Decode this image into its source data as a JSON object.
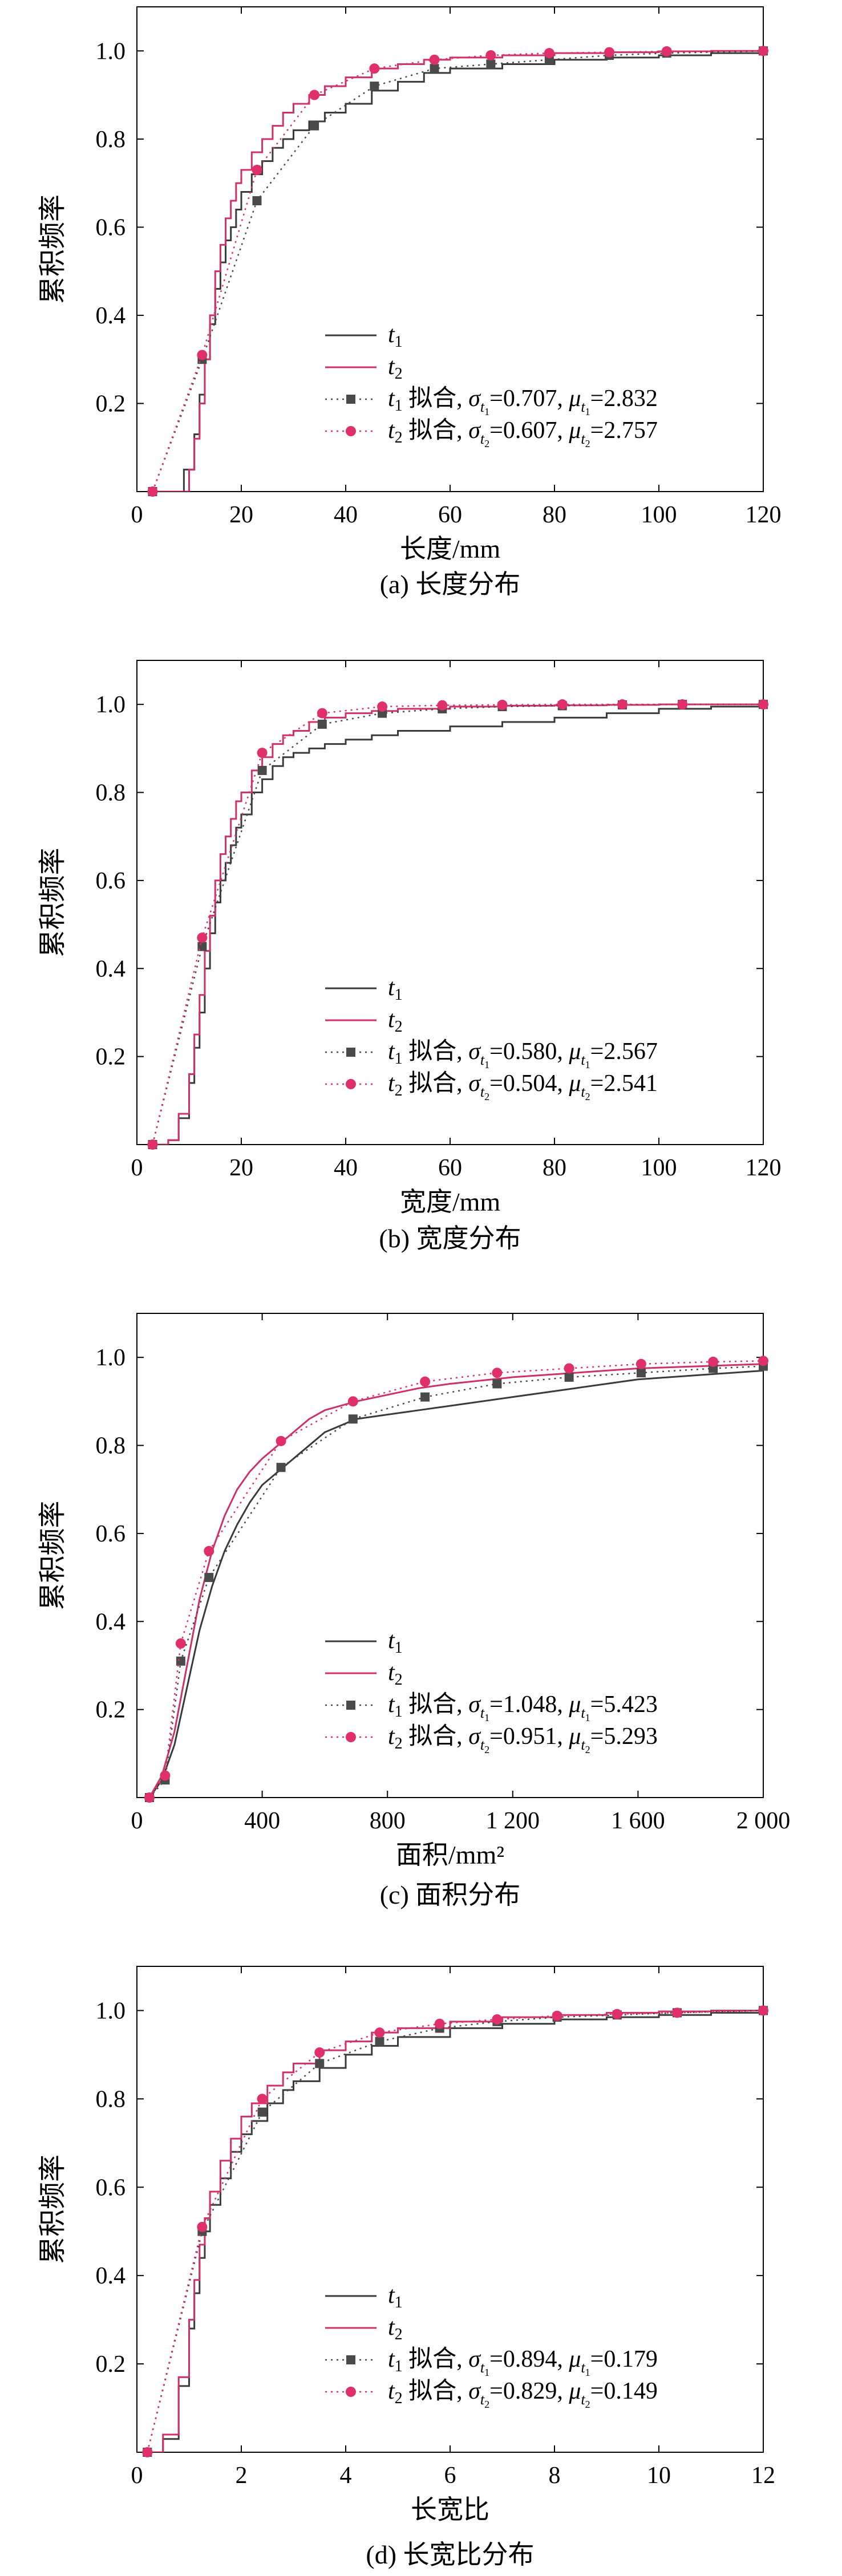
{
  "colors": {
    "t1": "#3a3a3a",
    "t2": "#d0306a",
    "fit1": "#4a4a4a",
    "fit2": "#e0306a",
    "axis": "#000000"
  },
  "chart_data": [
    {
      "type": "line",
      "caption": "(a) 长度分布",
      "xlabel": "长度/mm",
      "ylabel": "累积频率",
      "xlim": [
        0,
        120
      ],
      "ylim": [
        0,
        1.1
      ],
      "xticks": [
        0,
        20,
        40,
        60,
        80,
        100,
        120
      ],
      "xticklabels": [
        "0",
        "20",
        "40",
        "60",
        "80",
        "100",
        "120"
      ],
      "yticks": [
        0.2,
        0.4,
        0.6,
        0.8,
        1.0
      ],
      "yticklabels": [
        "0.2",
        "0.4",
        "0.6",
        "0.8",
        "1.0"
      ],
      "grid": false,
      "legend_position": "bottom-right",
      "legend": [
        {
          "base": "t",
          "sub": "1",
          "text": ""
        },
        {
          "base": "t",
          "sub": "2",
          "text": ""
        },
        {
          "base": "t",
          "sub": "1",
          "text": " 拟合, σ",
          "sub2": "t1",
          "mid": "=0.707, μ",
          "sub3": "t1",
          "end": "=2.832"
        },
        {
          "base": "t",
          "sub": "2",
          "text": " 拟合, σ",
          "sub2": "t2",
          "mid": "=0.607, μ",
          "sub3": "t2",
          "end": "=2.757"
        }
      ],
      "series": [
        {
          "key": "t1",
          "style": "step",
          "x": [
            3,
            7,
            9,
            11,
            12,
            13,
            14,
            15,
            16,
            17,
            18,
            19,
            20,
            22,
            24,
            26,
            28,
            30,
            33,
            36,
            40,
            45,
            50,
            55,
            60,
            70,
            80,
            90,
            100,
            110,
            120
          ],
          "y": [
            0,
            0,
            0.05,
            0.13,
            0.22,
            0.3,
            0.38,
            0.46,
            0.52,
            0.57,
            0.6,
            0.64,
            0.68,
            0.72,
            0.75,
            0.78,
            0.8,
            0.82,
            0.84,
            0.86,
            0.88,
            0.91,
            0.93,
            0.95,
            0.96,
            0.97,
            0.98,
            0.985,
            0.99,
            0.995,
            1.0
          ]
        },
        {
          "key": "t2",
          "style": "step",
          "x": [
            3,
            9,
            10,
            11,
            12,
            13,
            14,
            15,
            16,
            17,
            18,
            19,
            20,
            22,
            24,
            26,
            28,
            30,
            33,
            36,
            40,
            45,
            50,
            55,
            60,
            70,
            80,
            90,
            100,
            110,
            120
          ],
          "y": [
            0,
            0,
            0.05,
            0.12,
            0.2,
            0.3,
            0.4,
            0.5,
            0.56,
            0.62,
            0.66,
            0.7,
            0.73,
            0.77,
            0.8,
            0.83,
            0.86,
            0.88,
            0.9,
            0.92,
            0.94,
            0.96,
            0.97,
            0.98,
            0.985,
            0.99,
            0.995,
            0.997,
            0.999,
            1.0,
            1.0
          ]
        },
        {
          "key": "fit1",
          "style": "dotted",
          "x": [
            3,
            12.5,
            23,
            34,
            45.5,
            57,
            67.8,
            79,
            90.5,
            101.5,
            120
          ],
          "y": [
            0,
            0.3,
            0.66,
            0.83,
            0.92,
            0.96,
            0.97,
            0.98,
            0.99,
            0.995,
            1.0
          ]
        },
        {
          "key": "fit2",
          "style": "dotted",
          "x": [
            3,
            12.5,
            23,
            34,
            45.5,
            57,
            67.8,
            79,
            90.5,
            101.5,
            120
          ],
          "y": [
            0,
            0.31,
            0.73,
            0.9,
            0.96,
            0.98,
            0.99,
            0.995,
            0.997,
            0.999,
            1.0
          ]
        }
      ]
    },
    {
      "type": "line",
      "caption": "(b) 宽度分布",
      "xlabel": "宽度/mm",
      "ylabel": "累积频率",
      "xlim": [
        0,
        120
      ],
      "ylim": [
        0,
        1.1
      ],
      "xticks": [
        0,
        20,
        40,
        60,
        80,
        100,
        120
      ],
      "xticklabels": [
        "0",
        "20",
        "40",
        "60",
        "80",
        "100",
        "120"
      ],
      "yticks": [
        0.2,
        0.4,
        0.6,
        0.8,
        1.0
      ],
      "yticklabels": [
        "0.2",
        "0.4",
        "0.6",
        "0.8",
        "1.0"
      ],
      "grid": false,
      "legend_position": "bottom-right",
      "legend": [
        {
          "base": "t",
          "sub": "1",
          "text": ""
        },
        {
          "base": "t",
          "sub": "2",
          "text": ""
        },
        {
          "base": "t",
          "sub": "1",
          "text": " 拟合, σ",
          "sub2": "t1",
          "mid": "=0.580, μ",
          "sub3": "t1",
          "end": "=2.567"
        },
        {
          "base": "t",
          "sub": "2",
          "text": " 拟合, σ",
          "sub2": "t2",
          "mid": "=0.504, μ",
          "sub3": "t2",
          "end": "=2.541"
        }
      ],
      "series": [
        {
          "key": "t1",
          "style": "step",
          "x": [
            3,
            6,
            8,
            10,
            11,
            12,
            13,
            14,
            15,
            16,
            17,
            18,
            19,
            20,
            22,
            24,
            26,
            28,
            30,
            33,
            36,
            40,
            45,
            50,
            60,
            70,
            80,
            90,
            100,
            110,
            120
          ],
          "y": [
            0,
            0.01,
            0.06,
            0.14,
            0.22,
            0.3,
            0.4,
            0.48,
            0.55,
            0.6,
            0.64,
            0.68,
            0.72,
            0.75,
            0.8,
            0.83,
            0.86,
            0.88,
            0.89,
            0.9,
            0.91,
            0.92,
            0.93,
            0.94,
            0.95,
            0.96,
            0.97,
            0.98,
            0.99,
            0.995,
            1.0
          ]
        },
        {
          "key": "t2",
          "style": "step",
          "x": [
            3,
            6,
            8,
            10,
            11,
            12,
            13,
            14,
            15,
            16,
            17,
            18,
            19,
            20,
            22,
            24,
            26,
            28,
            30,
            33,
            36,
            40,
            45,
            50,
            60,
            70,
            80,
            90,
            100,
            110,
            120
          ],
          "y": [
            0,
            0.01,
            0.07,
            0.16,
            0.25,
            0.34,
            0.44,
            0.52,
            0.6,
            0.66,
            0.7,
            0.74,
            0.78,
            0.8,
            0.85,
            0.88,
            0.91,
            0.93,
            0.94,
            0.96,
            0.97,
            0.98,
            0.985,
            0.99,
            0.995,
            0.997,
            0.998,
            0.999,
            1.0,
            1.0,
            1.0
          ]
        },
        {
          "key": "fit1",
          "style": "dotted",
          "x": [
            3,
            12.5,
            24,
            35.5,
            47,
            58.5,
            70,
            81.5,
            93,
            104.5,
            120
          ],
          "y": [
            0,
            0.45,
            0.85,
            0.955,
            0.98,
            0.99,
            0.995,
            0.997,
            0.999,
            1.0,
            1.0
          ]
        },
        {
          "key": "fit2",
          "style": "dotted",
          "x": [
            3,
            12.5,
            24,
            35.5,
            47,
            58.5,
            70,
            81.5,
            93,
            104.5,
            120
          ],
          "y": [
            0,
            0.47,
            0.89,
            0.98,
            0.995,
            0.998,
            0.999,
            1.0,
            1.0,
            1.0,
            1.0
          ]
        }
      ]
    },
    {
      "type": "line",
      "caption": "(c) 面积分布",
      "xlabel": "面积/mm²",
      "ylabel": "累积频率",
      "xlim": [
        0,
        2000
      ],
      "ylim": [
        0,
        1.1
      ],
      "xticks": [
        0,
        400,
        800,
        1200,
        1600,
        2000
      ],
      "xticklabels": [
        "0",
        "400",
        "800",
        "1 200",
        "1 600",
        "2 000"
      ],
      "yticks": [
        0.2,
        0.4,
        0.6,
        0.8,
        1.0
      ],
      "yticklabels": [
        "0.2",
        "0.4",
        "0.6",
        "0.8",
        "1.0"
      ],
      "grid": false,
      "legend_position": "bottom-right",
      "legend": [
        {
          "base": "t",
          "sub": "1",
          "text": ""
        },
        {
          "base": "t",
          "sub": "2",
          "text": ""
        },
        {
          "base": "t",
          "sub": "1",
          "text": " 拟合, σ",
          "sub2": "t1",
          "mid": "=1.048, μ",
          "sub3": "t1",
          "end": "=5.423"
        },
        {
          "base": "t",
          "sub": "2",
          "text": " 拟合, σ",
          "sub2": "t2",
          "mid": "=0.951, μ",
          "sub3": "t2",
          "end": "=5.293"
        }
      ],
      "series": [
        {
          "key": "t1",
          "style": "line",
          "x": [
            40,
            80,
            120,
            160,
            200,
            240,
            280,
            320,
            360,
            400,
            450,
            500,
            550,
            600,
            700,
            800,
            900,
            1000,
            1200,
            1400,
            1600,
            1800,
            2000
          ],
          "y": [
            0,
            0.04,
            0.12,
            0.25,
            0.38,
            0.48,
            0.56,
            0.62,
            0.67,
            0.71,
            0.74,
            0.77,
            0.8,
            0.83,
            0.86,
            0.87,
            0.88,
            0.89,
            0.91,
            0.93,
            0.95,
            0.96,
            0.97
          ]
        },
        {
          "key": "t2",
          "style": "line",
          "x": [
            40,
            80,
            120,
            160,
            200,
            240,
            280,
            320,
            360,
            400,
            450,
            500,
            550,
            600,
            700,
            800,
            900,
            1000,
            1200,
            1400,
            1600,
            1800,
            2000
          ],
          "y": [
            0,
            0.05,
            0.15,
            0.3,
            0.45,
            0.56,
            0.64,
            0.7,
            0.74,
            0.77,
            0.8,
            0.83,
            0.86,
            0.88,
            0.9,
            0.915,
            0.93,
            0.94,
            0.955,
            0.965,
            0.975,
            0.98,
            0.985
          ]
        },
        {
          "key": "fit1",
          "style": "dotted",
          "x": [
            40,
            90,
            140,
            230,
            460,
            690,
            920,
            1150,
            1380,
            1610,
            1840,
            2000
          ],
          "y": [
            0,
            0.04,
            0.31,
            0.5,
            0.75,
            0.86,
            0.91,
            0.94,
            0.955,
            0.965,
            0.975,
            0.98
          ]
        },
        {
          "key": "fit2",
          "style": "dotted",
          "x": [
            40,
            90,
            140,
            230,
            460,
            690,
            920,
            1150,
            1380,
            1610,
            1840,
            2000
          ],
          "y": [
            0,
            0.05,
            0.35,
            0.56,
            0.81,
            0.9,
            0.945,
            0.965,
            0.975,
            0.985,
            0.99,
            0.992
          ]
        }
      ]
    },
    {
      "type": "line",
      "caption": "(d) 长宽比分布",
      "xlabel": "长宽比",
      "ylabel": "累积频率",
      "xlim": [
        0,
        12
      ],
      "ylim": [
        0,
        1.1
      ],
      "xticks": [
        0,
        2,
        4,
        6,
        8,
        10,
        12
      ],
      "xticklabels": [
        "0",
        "2",
        "4",
        "6",
        "8",
        "10",
        "12"
      ],
      "yticks": [
        0.2,
        0.4,
        0.6,
        0.8,
        1.0
      ],
      "yticklabels": [
        "0.2",
        "0.4",
        "0.6",
        "0.8",
        "1.0"
      ],
      "grid": false,
      "legend_position": "bottom-right",
      "legend": [
        {
          "base": "t",
          "sub": "1",
          "text": ""
        },
        {
          "base": "t",
          "sub": "2",
          "text": ""
        },
        {
          "base": "t",
          "sub": "1",
          "text": " 拟合, σ",
          "sub2": "t1",
          "mid": "=0.894, μ",
          "sub3": "t1",
          "end": "=0.179"
        },
        {
          "base": "t",
          "sub": "2",
          "text": " 拟合, σ",
          "sub2": "t2",
          "mid": "=0.829, μ",
          "sub3": "t2",
          "end": "=0.149"
        }
      ],
      "series": [
        {
          "key": "t1",
          "style": "step",
          "x": [
            0.2,
            0.5,
            0.8,
            1.0,
            1.1,
            1.2,
            1.3,
            1.4,
            1.6,
            1.8,
            2.0,
            2.2,
            2.5,
            2.8,
            3.0,
            3.5,
            4.0,
            4.5,
            5.0,
            6.0,
            7.0,
            8.0,
            9.0,
            10.0,
            11.0,
            12.0
          ],
          "y": [
            0,
            0.03,
            0.15,
            0.28,
            0.36,
            0.44,
            0.5,
            0.56,
            0.62,
            0.68,
            0.72,
            0.75,
            0.79,
            0.82,
            0.84,
            0.87,
            0.9,
            0.92,
            0.94,
            0.96,
            0.97,
            0.98,
            0.985,
            0.99,
            0.995,
            1.0
          ]
        },
        {
          "key": "t2",
          "style": "step",
          "x": [
            0.2,
            0.5,
            0.8,
            1.0,
            1.1,
            1.2,
            1.3,
            1.4,
            1.6,
            1.8,
            2.0,
            2.2,
            2.5,
            2.8,
            3.0,
            3.5,
            4.0,
            4.5,
            5.0,
            6.0,
            7.0,
            8.0,
            9.0,
            10.0,
            11.0,
            12.0
          ],
          "y": [
            0,
            0.04,
            0.17,
            0.3,
            0.39,
            0.47,
            0.53,
            0.59,
            0.66,
            0.71,
            0.76,
            0.79,
            0.83,
            0.86,
            0.88,
            0.91,
            0.93,
            0.95,
            0.96,
            0.975,
            0.985,
            0.99,
            0.995,
            0.998,
            1.0,
            1.0
          ]
        },
        {
          "key": "fit1",
          "style": "dotted",
          "x": [
            0.2,
            1.25,
            2.4,
            3.5,
            4.65,
            5.8,
            6.9,
            8.05,
            9.2,
            10.35,
            12.0
          ],
          "y": [
            0,
            0.5,
            0.77,
            0.88,
            0.93,
            0.96,
            0.975,
            0.985,
            0.99,
            0.995,
            1.0
          ]
        },
        {
          "key": "fit2",
          "style": "dotted",
          "x": [
            0.2,
            1.25,
            2.4,
            3.5,
            4.65,
            5.8,
            6.9,
            8.05,
            9.2,
            10.35,
            12.0
          ],
          "y": [
            0,
            0.51,
            0.8,
            0.905,
            0.95,
            0.97,
            0.98,
            0.988,
            0.992,
            0.995,
            1.0
          ]
        }
      ]
    }
  ]
}
